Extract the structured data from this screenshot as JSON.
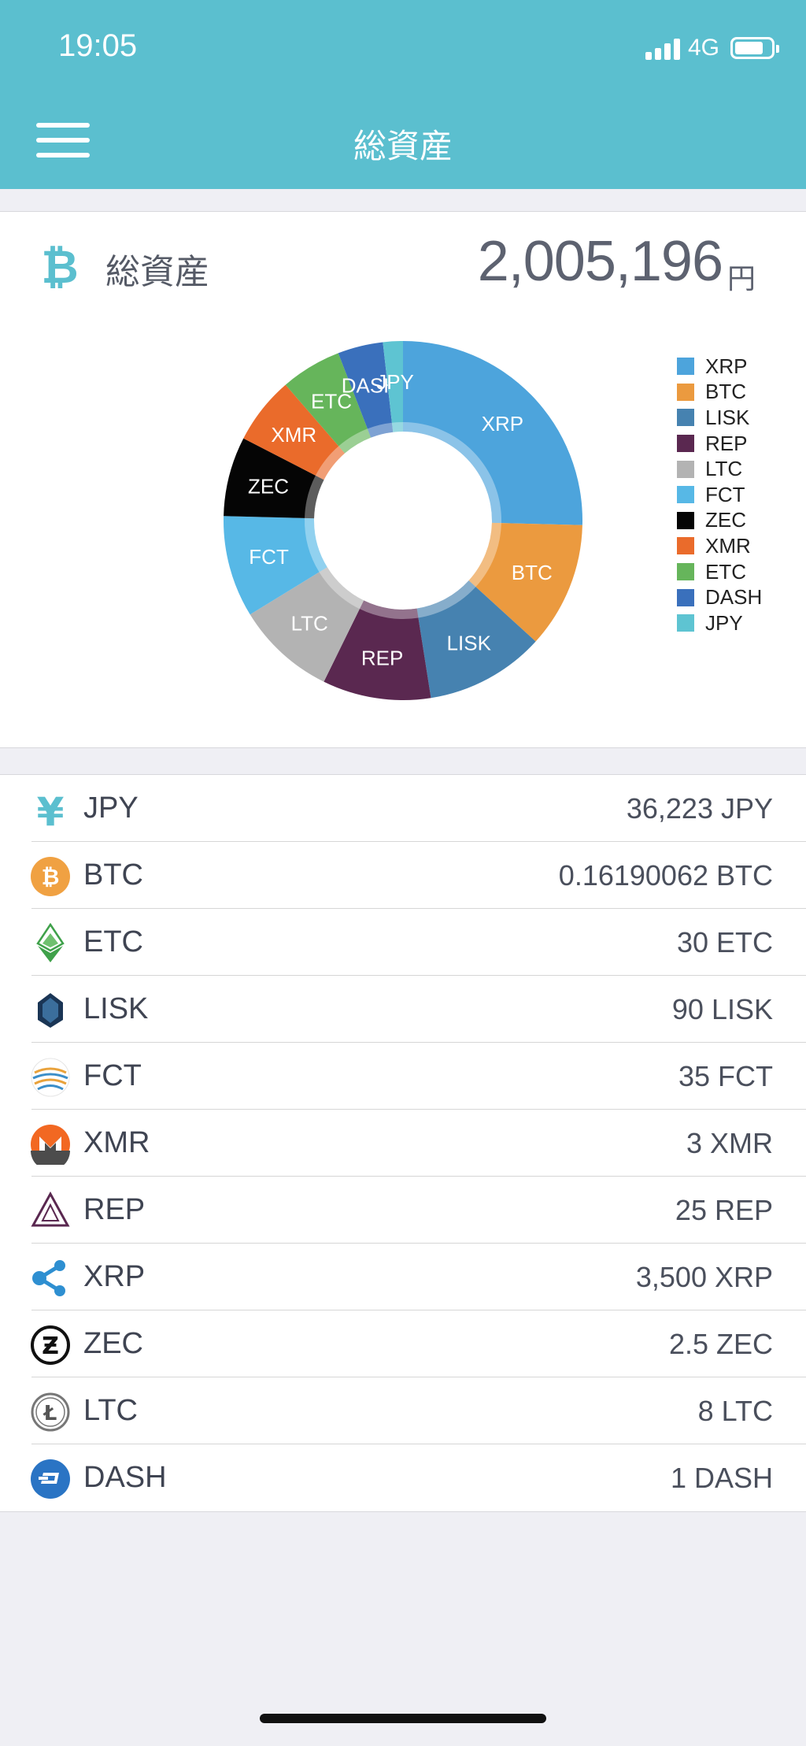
{
  "status_bar": {
    "time": "19:05",
    "network": "4G"
  },
  "nav": {
    "title": "総資産"
  },
  "summary": {
    "label": "総資産",
    "total": "2,005,196",
    "unit": "円"
  },
  "chart_data": {
    "type": "pie",
    "categories": [
      "XRP",
      "BTC",
      "LISK",
      "REP",
      "LTC",
      "FCT",
      "ZEC",
      "XMR",
      "ETC",
      "DASH",
      "JPY"
    ],
    "values": [
      25.5,
      11.4,
      10.8,
      9.8,
      9.0,
      9.2,
      7.2,
      6.1,
      5.5,
      4.1,
      1.8
    ],
    "colors": [
      "#4da4dc",
      "#eb9a3f",
      "#4682b0",
      "#5a2850",
      "#b3b3b3",
      "#57b8e6",
      "#050505",
      "#ea6b2b",
      "#66b55b",
      "#3a70bc",
      "#5ec4d2"
    ],
    "legend_position": "right"
  },
  "holdings": [
    {
      "symbol": "JPY",
      "amount": "36,223 JPY",
      "icon": "yen-icon"
    },
    {
      "symbol": "BTC",
      "amount": "0.16190062 BTC",
      "icon": "bitcoin-icon"
    },
    {
      "symbol": "ETC",
      "amount": "30 ETC",
      "icon": "ethereum-classic-icon"
    },
    {
      "symbol": "LISK",
      "amount": "90 LISK",
      "icon": "lisk-icon"
    },
    {
      "symbol": "FCT",
      "amount": "35 FCT",
      "icon": "factom-icon"
    },
    {
      "symbol": "XMR",
      "amount": "3 XMR",
      "icon": "monero-icon"
    },
    {
      "symbol": "REP",
      "amount": "25 REP",
      "icon": "augur-icon"
    },
    {
      "symbol": "XRP",
      "amount": "3,500 XRP",
      "icon": "ripple-icon"
    },
    {
      "symbol": "ZEC",
      "amount": "2.5 ZEC",
      "icon": "zcash-icon"
    },
    {
      "symbol": "LTC",
      "amount": "8 LTC",
      "icon": "litecoin-icon"
    },
    {
      "symbol": "DASH",
      "amount": "1 DASH",
      "icon": "dash-icon"
    }
  ]
}
